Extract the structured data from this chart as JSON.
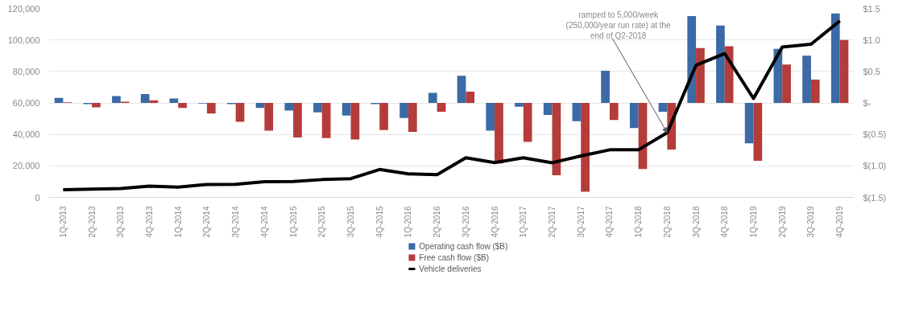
{
  "chart_data": {
    "type": "bar",
    "categories": [
      "1Q-2013",
      "2Q-2013",
      "3Q-2013",
      "4Q-2013",
      "1Q-2014",
      "2Q-2014",
      "3Q-2014",
      "4Q-2014",
      "1Q-2015",
      "2Q-2015",
      "3Q-2015",
      "4Q-2015",
      "1Q-2016",
      "2Q-2016",
      "3Q-2016",
      "4Q-2016",
      "1Q-2017",
      "2Q-2017",
      "3Q-2017",
      "4Q-2017",
      "1Q-2018",
      "2Q-2018",
      "3Q-2018",
      "4Q-2018",
      "1Q-2019",
      "2Q-2019",
      "3Q-2019",
      "4Q-2019"
    ],
    "series": [
      {
        "name": "Operating cash flow ($B)",
        "axis": "y2",
        "color": "#3b6aa6",
        "values": [
          0.08,
          -0.02,
          0.11,
          0.14,
          0.07,
          -0.01,
          -0.02,
          -0.08,
          -0.12,
          -0.15,
          -0.2,
          -0.02,
          -0.24,
          0.16,
          0.43,
          -0.44,
          -0.06,
          -0.19,
          -0.29,
          0.51,
          -0.4,
          -0.14,
          1.38,
          1.23,
          -0.64,
          0.86,
          0.75,
          1.42
        ]
      },
      {
        "name": "Free cash flow ($B)",
        "axis": "y2",
        "color": "#b53c3a",
        "values": [
          0.01,
          -0.07,
          0.02,
          0.04,
          -0.08,
          -0.17,
          -0.3,
          -0.44,
          -0.55,
          -0.56,
          -0.58,
          -0.43,
          -0.46,
          -0.14,
          0.18,
          -0.96,
          -0.62,
          -1.15,
          -1.41,
          -0.27,
          -1.05,
          -0.74,
          0.87,
          0.9,
          -0.92,
          0.61,
          0.37,
          1.0
        ]
      },
      {
        "name": "Vehicle deliveries",
        "type": "line",
        "color": "#000000",
        "values": [
          4900,
          5200,
          5600,
          7100,
          6500,
          8200,
          8300,
          10000,
          10100,
          11300,
          11900,
          17700,
          14900,
          14400,
          25100,
          22100,
          25100,
          22000,
          26300,
          30200,
          30200,
          41100,
          83900,
          91300,
          62800,
          95500,
          97300,
          112100
        ]
      }
    ],
    "ylim": [
      0,
      120000
    ],
    "yticks": [
      {
        "value": 0,
        "label": "0"
      },
      {
        "value": 20000,
        "label": "20,000"
      },
      {
        "value": 40000,
        "label": "40,000"
      },
      {
        "value": 60000,
        "label": "60,000"
      },
      {
        "value": 80000,
        "label": "80,000"
      },
      {
        "value": 100000,
        "label": "100,000"
      },
      {
        "value": 120000,
        "label": "120,000"
      }
    ],
    "y2lim": [
      -1.5,
      1.5
    ],
    "y2ticks": [
      {
        "value": -1.5,
        "label": "$(1.5)"
      },
      {
        "value": -1.0,
        "label": "$(1.0)"
      },
      {
        "value": -0.5,
        "label": "$(0.5)"
      },
      {
        "value": 0,
        "label": "$-"
      },
      {
        "value": 0.5,
        "label": "$0.5"
      },
      {
        "value": 1.0,
        "label": "$1.0"
      },
      {
        "value": 1.5,
        "label": "$1.5"
      }
    ],
    "grid": "y",
    "legend": "bottom",
    "annotations": [
      {
        "text": "ramped to 5,000/week (250,000/year run rate) at the end of Q2-2018",
        "x": "2Q-2018",
        "y": 41100
      }
    ]
  }
}
